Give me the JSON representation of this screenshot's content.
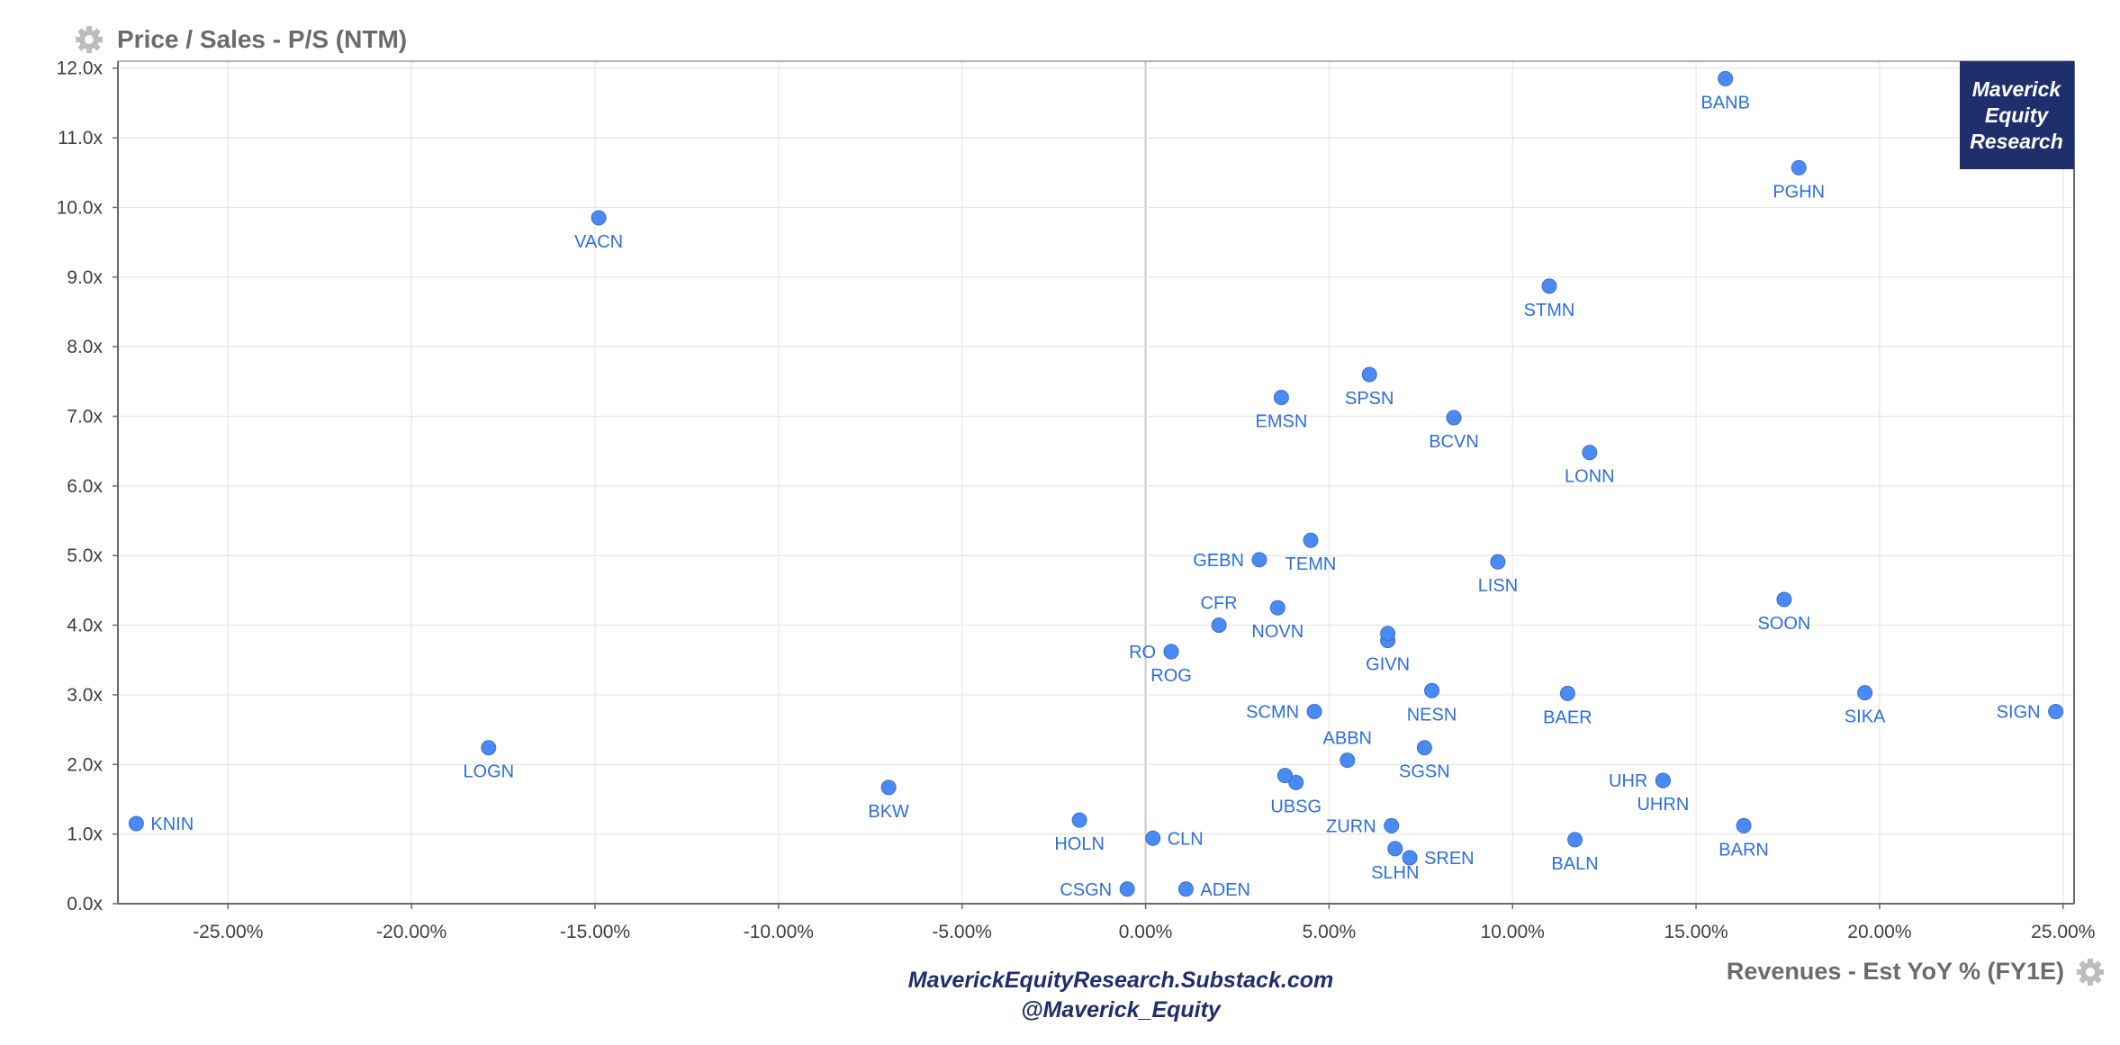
{
  "chart_data": {
    "type": "scatter",
    "title": "Price / Sales - P/S (NTM)",
    "xlabel": "Revenues - Est YoY % (FY1E)",
    "ylabel": "",
    "xlim": [
      -28.0,
      25.3
    ],
    "ylim": [
      0,
      12.1
    ],
    "grid": true,
    "x_ticks": [
      -25,
      -20,
      -15,
      -10,
      -5,
      0,
      5,
      10,
      15,
      20,
      25
    ],
    "x_tick_labels": [
      "-25.00%",
      "-20.00%",
      "-15.00%",
      "-10.00%",
      "-5.00%",
      "0.00%",
      "5.00%",
      "10.00%",
      "15.00%",
      "20.00%",
      "25.00%"
    ],
    "y_ticks": [
      0,
      1,
      2,
      3,
      4,
      5,
      6,
      7,
      8,
      9,
      10,
      11,
      12
    ],
    "y_tick_labels": [
      "0.0x",
      "1.0x",
      "2.0x",
      "3.0x",
      "4.0x",
      "5.0x",
      "6.0x",
      "7.0x",
      "8.0x",
      "9.0x",
      "10.0x",
      "11.0x",
      "12.0x"
    ],
    "marker_color": "#4a8af4",
    "label_color": "#2c6fdc",
    "points": [
      {
        "label": "BANB",
        "x": 15.8,
        "y": 11.85,
        "pos": "below"
      },
      {
        "label": "PGHN",
        "x": 17.8,
        "y": 10.57,
        "pos": "below"
      },
      {
        "label": "VACN",
        "x": -14.9,
        "y": 9.85,
        "pos": "below"
      },
      {
        "label": "STMN",
        "x": 11.0,
        "y": 8.87,
        "pos": "below"
      },
      {
        "label": "SPSN",
        "x": 6.1,
        "y": 7.6,
        "pos": "below"
      },
      {
        "label": "EMSN",
        "x": 3.7,
        "y": 7.27,
        "pos": "below"
      },
      {
        "label": "BCVN",
        "x": 8.4,
        "y": 6.98,
        "pos": "below"
      },
      {
        "label": "LONN",
        "x": 12.1,
        "y": 6.48,
        "pos": "below"
      },
      {
        "label": "TEMN",
        "x": 4.5,
        "y": 5.22,
        "pos": "below"
      },
      {
        "label": "GEBN",
        "x": 3.1,
        "y": 4.94,
        "pos": "left"
      },
      {
        "label": "LISN",
        "x": 9.6,
        "y": 4.91,
        "pos": "below"
      },
      {
        "label": "SOON",
        "x": 17.4,
        "y": 4.37,
        "pos": "below"
      },
      {
        "label": "NOVN",
        "x": 3.6,
        "y": 4.25,
        "pos": "below"
      },
      {
        "label": "CFR",
        "x": 2.0,
        "y": 4.0,
        "pos": "above"
      },
      {
        "label": "GIVN",
        "x": 6.6,
        "y": 3.78,
        "pos": "below"
      },
      {
        "label": "",
        "x": 6.6,
        "y": 3.88,
        "pos": "none"
      },
      {
        "label": "RO",
        "x": 0.7,
        "y": 3.62,
        "pos": "left"
      },
      {
        "label": "ROG",
        "x": 0.7,
        "y": 3.62,
        "pos": "below"
      },
      {
        "label": "NESN",
        "x": 7.8,
        "y": 3.06,
        "pos": "below"
      },
      {
        "label": "BAER",
        "x": 11.5,
        "y": 3.02,
        "pos": "below"
      },
      {
        "label": "SIKA",
        "x": 19.6,
        "y": 3.03,
        "pos": "below"
      },
      {
        "label": "SIGN",
        "x": 24.8,
        "y": 2.76,
        "pos": "left"
      },
      {
        "label": "SCMN",
        "x": 4.6,
        "y": 2.76,
        "pos": "left"
      },
      {
        "label": "ABBN",
        "x": 5.5,
        "y": 2.06,
        "pos": "above"
      },
      {
        "label": "SGSN",
        "x": 7.6,
        "y": 2.24,
        "pos": "below"
      },
      {
        "label": "LOGN",
        "x": -17.9,
        "y": 2.24,
        "pos": "below"
      },
      {
        "label": "UBSG",
        "x": 4.1,
        "y": 1.74,
        "pos": "below"
      },
      {
        "label": "",
        "x": 3.8,
        "y": 1.84,
        "pos": "none"
      },
      {
        "label": "UHR",
        "x": 14.1,
        "y": 1.77,
        "pos": "left"
      },
      {
        "label": "UHRN",
        "x": 14.1,
        "y": 1.77,
        "pos": "below"
      },
      {
        "label": "BKW",
        "x": -7.0,
        "y": 1.67,
        "pos": "below"
      },
      {
        "label": "HOLN",
        "x": -1.8,
        "y": 1.2,
        "pos": "below"
      },
      {
        "label": "KNIN",
        "x": -27.5,
        "y": 1.15,
        "pos": "right"
      },
      {
        "label": "ZURN",
        "x": 6.7,
        "y": 1.12,
        "pos": "left"
      },
      {
        "label": "BARN",
        "x": 16.3,
        "y": 1.12,
        "pos": "below"
      },
      {
        "label": "CLN",
        "x": 0.2,
        "y": 0.94,
        "pos": "right"
      },
      {
        "label": "BALN",
        "x": 11.7,
        "y": 0.92,
        "pos": "below"
      },
      {
        "label": "SLHN",
        "x": 6.8,
        "y": 0.79,
        "pos": "below"
      },
      {
        "label": "SREN",
        "x": 7.2,
        "y": 0.66,
        "pos": "right"
      },
      {
        "label": "CSGN",
        "x": -0.5,
        "y": 0.21,
        "pos": "left"
      },
      {
        "label": "ADEN",
        "x": 1.1,
        "y": 0.21,
        "pos": "right"
      }
    ]
  },
  "footer": {
    "line1": "MaverickEquityResearch.Substack.com",
    "line2": "@Maverick_Equity"
  },
  "logo": {
    "line1": "Maverick",
    "line2": "Equity",
    "line3": "Research",
    "bg_color": "#1f2f6b"
  },
  "icons": {
    "title_settings": "gear-icon",
    "axis_settings": "gear-icon"
  }
}
